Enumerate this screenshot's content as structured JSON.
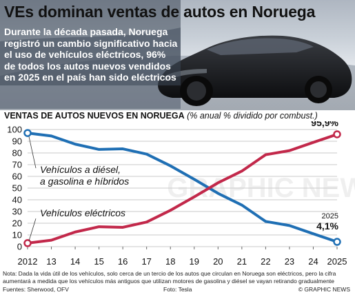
{
  "title": "VEs dominan ventas de autos en Noruega",
  "description": "Durante la década pasada, Noruega registró un cambio significativo hacia el uso de vehículos eléctricos, 96% de todos los autos nuevos vendidos en 2025 en el país han sido eléctricos",
  "chart_heading": "VENTAS DE AUTOS NUEVOS EN NORUEGA",
  "chart_subheading": "(% anual % dividido por combust.)",
  "note": "Nota: Dada la vida útil de los vehículos, solo cerca de un tercio de los autos que circulan en Noruega son eléctricos, pero la cifra aumentará a medida que los vehículos más antiguos que utilizan motores de gasolina y diésel se vayan retirando gradualmente",
  "sources": "Fuentes: Sherwood, OFV",
  "photo_credit": "Foto: Tesla",
  "brand": "© GRAPHIC NEWS",
  "watermark": "GRAPHIC NEWS",
  "colors": {
    "fossil": "#1f6fb4",
    "electric": "#c2284a",
    "grid": "#c8c8c8"
  },
  "chart_data": {
    "type": "line",
    "x": [
      "2012",
      "13",
      "14",
      "15",
      "16",
      "17",
      "18",
      "19",
      "20",
      "21",
      "22",
      "23",
      "24",
      "2025"
    ],
    "ylim": [
      0,
      100
    ],
    "yticks": [
      0,
      10,
      20,
      30,
      40,
      50,
      60,
      70,
      80,
      90,
      100
    ],
    "grid": true,
    "series": [
      {
        "name": "Vehículos a diésel, a gasolina e híbridos",
        "color": "#1f6fb4",
        "values": [
          97,
          94.5,
          87.5,
          83,
          83.5,
          79,
          69,
          57.5,
          45.5,
          35.5,
          21.5,
          18,
          11,
          4.1
        ]
      },
      {
        "name": "Vehículos eléctricos",
        "color": "#c2284a",
        "values": [
          3,
          5.5,
          12.5,
          17,
          16.5,
          21,
          31,
          42.5,
          54.5,
          64.5,
          78.5,
          82,
          89,
          95.9
        ]
      }
    ],
    "annotations": [
      {
        "series": 0,
        "year": "2025",
        "value": "4,1%"
      },
      {
        "series": 1,
        "year": "2025",
        "value": "95,9%"
      }
    ]
  }
}
